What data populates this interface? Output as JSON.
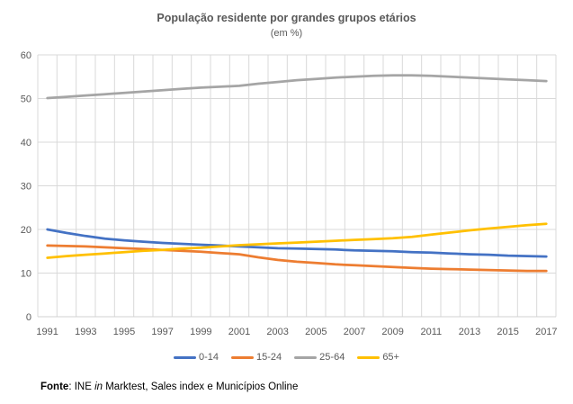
{
  "chart_data": {
    "type": "line",
    "title": "População residente por grandes grupos etários",
    "subtitle": "(em %)",
    "x": [
      1991,
      1992,
      1993,
      1994,
      1995,
      1996,
      1997,
      1998,
      1999,
      2000,
      2001,
      2002,
      2003,
      2004,
      2005,
      2006,
      2007,
      2008,
      2009,
      2010,
      2011,
      2012,
      2013,
      2014,
      2015,
      2016,
      2017
    ],
    "xtick_labels": [
      "1991",
      "1993",
      "1995",
      "1997",
      "1999",
      "2001",
      "2003",
      "2005",
      "2007",
      "2009",
      "2011",
      "2013",
      "2015",
      "2017"
    ],
    "ylim": [
      0,
      60
    ],
    "yticks": [
      0,
      10,
      20,
      30,
      40,
      50,
      60
    ],
    "grid": true,
    "legend_position": "bottom",
    "series": [
      {
        "name": "0-14",
        "color": "#4472C4",
        "values": [
          20.0,
          19.2,
          18.5,
          17.9,
          17.5,
          17.2,
          16.9,
          16.7,
          16.5,
          16.3,
          16.1,
          15.9,
          15.7,
          15.6,
          15.5,
          15.4,
          15.2,
          15.1,
          15.0,
          14.8,
          14.7,
          14.5,
          14.3,
          14.2,
          14.0,
          13.9,
          13.8
        ]
      },
      {
        "name": "15-24",
        "color": "#ED7D31",
        "values": [
          16.3,
          16.2,
          16.1,
          15.9,
          15.7,
          15.5,
          15.3,
          15.1,
          14.9,
          14.6,
          14.3,
          13.6,
          13.0,
          12.6,
          12.3,
          12.0,
          11.8,
          11.6,
          11.4,
          11.2,
          11.0,
          10.9,
          10.8,
          10.7,
          10.6,
          10.5,
          10.5
        ]
      },
      {
        "name": "25-64",
        "color": "#A5A5A5",
        "values": [
          50.1,
          50.4,
          50.7,
          51.0,
          51.3,
          51.6,
          51.9,
          52.2,
          52.5,
          52.7,
          52.9,
          53.4,
          53.8,
          54.2,
          54.5,
          54.8,
          55.0,
          55.2,
          55.3,
          55.3,
          55.2,
          55.0,
          54.8,
          54.6,
          54.4,
          54.2,
          54.0
        ]
      },
      {
        "name": "65+",
        "color": "#FFC000",
        "values": [
          13.5,
          13.9,
          14.2,
          14.5,
          14.8,
          15.1,
          15.3,
          15.6,
          15.8,
          16.1,
          16.4,
          16.6,
          16.8,
          17.0,
          17.2,
          17.4,
          17.6,
          17.8,
          18.0,
          18.3,
          18.8,
          19.3,
          19.8,
          20.2,
          20.6,
          21.0,
          21.3
        ]
      }
    ]
  },
  "source": {
    "parts": [
      {
        "text": "Fonte",
        "bold": true
      },
      {
        "text": ": INE "
      },
      {
        "text": "in",
        "italic": true
      },
      {
        "text": " Marktest, Sales index e Municípios Online"
      }
    ]
  },
  "colors": {
    "gridline": "#D9D9D9",
    "axis_line": "#D0D0D0",
    "tick_text": "#595959",
    "background": "#FFFFFF"
  }
}
